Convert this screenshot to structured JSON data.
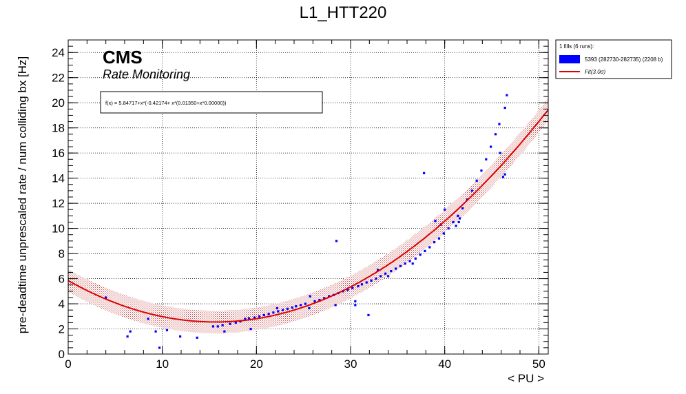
{
  "chart_data": {
    "type": "scatter",
    "title": "L1_HTT220",
    "xlabel": "< PU >",
    "ylabel": "pre-deadtime unprescaled rate / num colliding bx [Hz]",
    "xlim": [
      0,
      51
    ],
    "ylim": [
      0,
      25
    ],
    "grid": true,
    "x_ticks": [
      "0",
      "10",
      "20",
      "30",
      "40",
      "50"
    ],
    "y_ticks": [
      "0",
      "2",
      "4",
      "6",
      "8",
      "10",
      "12",
      "14",
      "16",
      "18",
      "20",
      "22",
      "24"
    ],
    "cms_label": "CMS",
    "cms_sublabel": "Rate Monitoring",
    "fit_formula_text": "f(x) = 5.84717+x*(-0.42174+ x*(0.01350+x*0.00000))",
    "fit": {
      "coefficients": [
        5.84717,
        -0.42174,
        0.0135,
        0.0
      ],
      "band_sigma": 3.0,
      "band_halfwidth": 0.9,
      "color": "#dd0000"
    },
    "legend": {
      "placement": "right-outside",
      "header": "1 fills (6 runs):",
      "entries": [
        {
          "label": "5393 (282730-282735) (2208 b)",
          "color": "#0000ff",
          "kind": "fill"
        },
        {
          "label": "Fit(3.0σ)",
          "color": "#dd0000",
          "kind": "line"
        }
      ]
    },
    "series": [
      {
        "name": "5393 (282730-282735) (2208 b)",
        "color": "#0000ff",
        "points": [
          [
            4.0,
            4.5
          ],
          [
            6.3,
            1.4
          ],
          [
            6.6,
            1.8
          ],
          [
            8.5,
            2.8
          ],
          [
            9.3,
            1.8
          ],
          [
            9.7,
            0.5
          ],
          [
            10.5,
            1.9
          ],
          [
            11.9,
            1.4
          ],
          [
            13.7,
            1.3
          ],
          [
            15.4,
            2.2
          ],
          [
            15.9,
            2.2
          ],
          [
            16.4,
            2.3
          ],
          [
            16.6,
            1.8
          ],
          [
            17.2,
            2.4
          ],
          [
            17.8,
            2.5
          ],
          [
            18.3,
            2.6
          ],
          [
            18.8,
            2.8
          ],
          [
            19.2,
            2.85
          ],
          [
            19.4,
            2.0
          ],
          [
            19.8,
            2.9
          ],
          [
            20.3,
            3.0
          ],
          [
            20.8,
            3.1
          ],
          [
            21.3,
            3.2
          ],
          [
            21.8,
            3.3
          ],
          [
            22.3,
            3.4
          ],
          [
            22.2,
            3.65
          ],
          [
            22.8,
            3.5
          ],
          [
            23.3,
            3.6
          ],
          [
            23.8,
            3.7
          ],
          [
            24.2,
            3.8
          ],
          [
            24.7,
            3.9
          ],
          [
            25.2,
            4.0
          ],
          [
            25.6,
            3.65
          ],
          [
            25.7,
            4.6
          ],
          [
            26.2,
            4.2
          ],
          [
            26.7,
            4.3
          ],
          [
            27.2,
            4.45
          ],
          [
            27.7,
            4.6
          ],
          [
            28.2,
            4.7
          ],
          [
            28.5,
            9.0
          ],
          [
            28.4,
            3.9
          ],
          [
            28.7,
            4.85
          ],
          [
            29.2,
            5.0
          ],
          [
            29.7,
            5.1
          ],
          [
            30.2,
            5.25
          ],
          [
            30.5,
            3.9
          ],
          [
            30.5,
            4.2
          ],
          [
            30.8,
            5.4
          ],
          [
            31.2,
            5.55
          ],
          [
            31.7,
            5.7
          ],
          [
            31.9,
            3.1
          ],
          [
            32.2,
            5.85
          ],
          [
            32.7,
            6.0
          ],
          [
            32.9,
            6.7
          ],
          [
            33.2,
            6.2
          ],
          [
            33.7,
            6.4
          ],
          [
            34.0,
            6.2
          ],
          [
            34.3,
            6.6
          ],
          [
            34.8,
            6.8
          ],
          [
            35.3,
            7.0
          ],
          [
            35.8,
            7.2
          ],
          [
            36.3,
            7.4
          ],
          [
            36.6,
            7.2
          ],
          [
            36.9,
            7.6
          ],
          [
            37.4,
            7.9
          ],
          [
            37.9,
            8.2
          ],
          [
            37.8,
            14.4
          ],
          [
            38.4,
            8.5
          ],
          [
            38.9,
            8.9
          ],
          [
            39.0,
            10.6
          ],
          [
            39.4,
            9.2
          ],
          [
            39.6,
            10.3
          ],
          [
            39.9,
            9.6
          ],
          [
            40.0,
            11.5
          ],
          [
            40.4,
            10.0
          ],
          [
            40.9,
            10.5
          ],
          [
            41.2,
            10.2
          ],
          [
            41.4,
            11.0
          ],
          [
            41.5,
            10.5
          ],
          [
            41.6,
            10.8
          ],
          [
            41.9,
            11.6
          ],
          [
            42.4,
            12.3
          ],
          [
            42.9,
            13.0
          ],
          [
            43.4,
            13.8
          ],
          [
            43.9,
            14.6
          ],
          [
            44.4,
            15.5
          ],
          [
            44.9,
            16.5
          ],
          [
            45.4,
            17.5
          ],
          [
            45.8,
            18.3
          ],
          [
            45.9,
            16.0
          ],
          [
            46.2,
            14.1
          ],
          [
            46.4,
            14.3
          ],
          [
            46.4,
            19.6
          ],
          [
            46.6,
            20.6
          ]
        ]
      }
    ]
  }
}
